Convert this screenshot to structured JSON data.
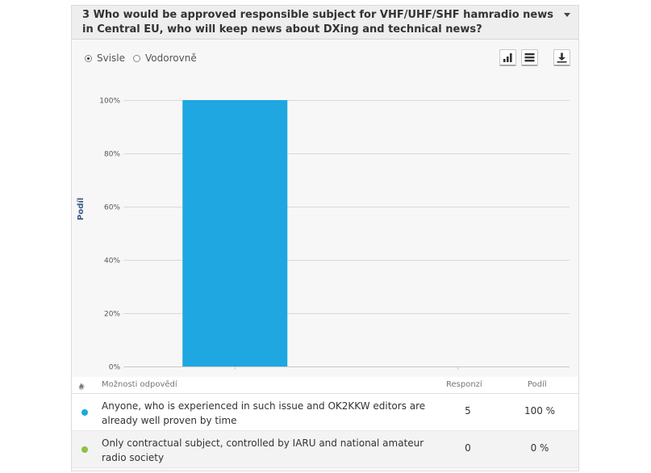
{
  "question": {
    "title": "3 Who would be approved responsible subject for VHF/UHF/SHF hamradio news in Central EU, who will keep news about DXing and technical news?"
  },
  "orientation": {
    "options": [
      "Svisle",
      "Vodorovně"
    ],
    "selected": "Svisle"
  },
  "toolbar": {
    "icons": [
      "bar-chart-icon",
      "table-icon",
      "download-icon"
    ]
  },
  "colors": {
    "bar": "#1ea7e1",
    "series": [
      "#1ea7e1",
      "#8ac43f"
    ],
    "axis_title": "#3c5a8a"
  },
  "chart_data": {
    "type": "bar",
    "categories": [
      "Anyone, who is experienced in such issue and OK2KKW editors are already well proven by time",
      "Only contractual subject, controlled by IARU and national amateur radio society"
    ],
    "values": [
      100,
      0
    ],
    "ylabel": "Podíl",
    "yticks": [
      "0%",
      "20%",
      "40%",
      "60%",
      "80%",
      "100%"
    ],
    "ylim": [
      0,
      100
    ],
    "grid": true
  },
  "table": {
    "headers": {
      "index": "#",
      "answer": "Možnosti odpovědí",
      "responses": "Responzí",
      "share": "Podíl"
    },
    "rows": [
      {
        "answer": "Anyone, who is experienced in such issue and OK2KKW editors are already well proven by time",
        "responses": "5",
        "share": "100 %",
        "color": "#1ea7e1"
      },
      {
        "answer": "Only contractual subject, controlled by IARU and national amateur radio society",
        "responses": "0",
        "share": "0 %",
        "color": "#8ac43f"
      }
    ]
  }
}
